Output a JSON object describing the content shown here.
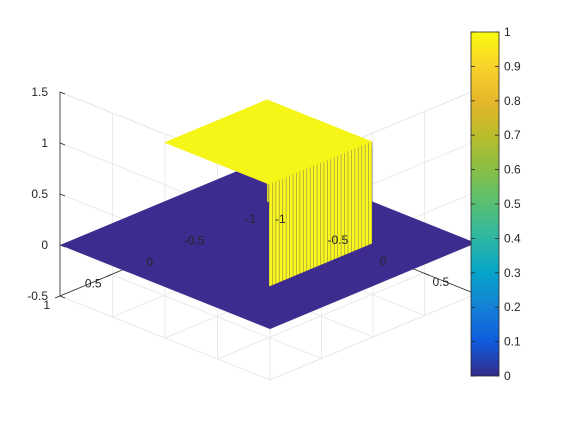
{
  "chart_data": {
    "type": "surface",
    "title": "",
    "xlabel": "",
    "ylabel": "",
    "zlabel": "",
    "xlim": [
      -1,
      1
    ],
    "ylim": [
      -1,
      1
    ],
    "zlim": [
      -0.5,
      1.5
    ],
    "x_ticks": [
      "-1",
      "-0.5",
      "0",
      "0.5",
      "1"
    ],
    "y_ticks": [
      "-1",
      "-0.5",
      "0",
      "0.5",
      "1"
    ],
    "z_ticks": [
      "-0.5",
      "0",
      "0.5",
      "1",
      "1.5"
    ],
    "surface": {
      "description_free": true,
      "plateau_value": 1,
      "base_value": 0,
      "plateau_region": {
        "x": [
          -0.5,
          0.5
        ],
        "y": [
          -0.5,
          0.5
        ]
      }
    },
    "grid": true,
    "colorbar": {
      "range": [
        0,
        1
      ],
      "ticks": [
        "0",
        "0.1",
        "0.2",
        "0.3",
        "0.4",
        "0.5",
        "0.6",
        "0.7",
        "0.8",
        "0.9",
        "1"
      ],
      "colormap": "parula"
    },
    "colors": {
      "base": "#3e2b8f",
      "plateau": "#f5f518",
      "wall": "#f8f81e",
      "wall_dark": "#4a3a6a"
    }
  }
}
